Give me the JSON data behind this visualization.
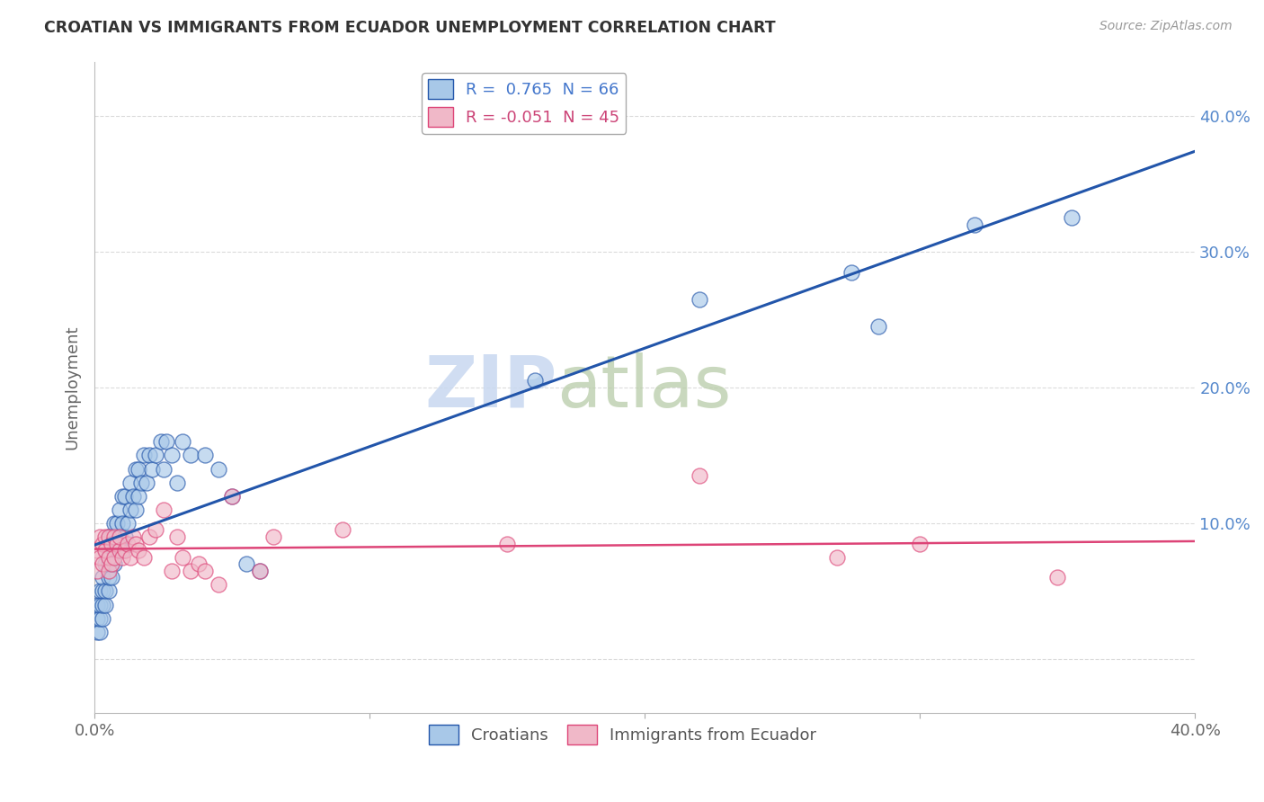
{
  "title": "CROATIAN VS IMMIGRANTS FROM ECUADOR UNEMPLOYMENT CORRELATION CHART",
  "source": "Source: ZipAtlas.com",
  "ylabel": "Unemployment",
  "croatian_r": 0.765,
  "croatian_n": 66,
  "ecuador_r": -0.051,
  "ecuador_n": 45,
  "blue_color": "#a8c8e8",
  "pink_color": "#f0b8c8",
  "blue_line_color": "#2255aa",
  "pink_line_color": "#dd4477",
  "watermark_zip_color": "#c8d8ee",
  "watermark_atlas_color": "#c8d8cc",
  "background_color": "#ffffff",
  "grid_color": "#cccccc",
  "croatian_x": [
    0.001,
    0.001,
    0.001,
    0.002,
    0.002,
    0.002,
    0.002,
    0.003,
    0.003,
    0.003,
    0.003,
    0.004,
    0.004,
    0.004,
    0.004,
    0.005,
    0.005,
    0.005,
    0.005,
    0.006,
    0.006,
    0.006,
    0.007,
    0.007,
    0.007,
    0.008,
    0.008,
    0.009,
    0.009,
    0.01,
    0.01,
    0.01,
    0.011,
    0.011,
    0.012,
    0.013,
    0.013,
    0.014,
    0.015,
    0.015,
    0.016,
    0.016,
    0.017,
    0.018,
    0.019,
    0.02,
    0.021,
    0.022,
    0.024,
    0.025,
    0.026,
    0.028,
    0.03,
    0.032,
    0.035,
    0.04,
    0.045,
    0.05,
    0.055,
    0.06,
    0.16,
    0.22,
    0.275,
    0.285,
    0.32,
    0.355
  ],
  "croatian_y": [
    0.02,
    0.03,
    0.04,
    0.02,
    0.03,
    0.04,
    0.05,
    0.03,
    0.04,
    0.05,
    0.06,
    0.04,
    0.05,
    0.07,
    0.08,
    0.05,
    0.06,
    0.07,
    0.09,
    0.06,
    0.07,
    0.09,
    0.07,
    0.08,
    0.1,
    0.08,
    0.1,
    0.09,
    0.11,
    0.08,
    0.1,
    0.12,
    0.09,
    0.12,
    0.1,
    0.11,
    0.13,
    0.12,
    0.11,
    0.14,
    0.12,
    0.14,
    0.13,
    0.15,
    0.13,
    0.15,
    0.14,
    0.15,
    0.16,
    0.14,
    0.16,
    0.15,
    0.13,
    0.16,
    0.15,
    0.15,
    0.14,
    0.12,
    0.07,
    0.065,
    0.205,
    0.265,
    0.285,
    0.245,
    0.32,
    0.325
  ],
  "ecuador_x": [
    0.001,
    0.001,
    0.002,
    0.002,
    0.003,
    0.003,
    0.004,
    0.004,
    0.005,
    0.005,
    0.005,
    0.006,
    0.006,
    0.007,
    0.007,
    0.008,
    0.009,
    0.009,
    0.01,
    0.011,
    0.012,
    0.013,
    0.014,
    0.015,
    0.016,
    0.018,
    0.02,
    0.022,
    0.025,
    0.028,
    0.03,
    0.032,
    0.035,
    0.038,
    0.04,
    0.045,
    0.05,
    0.06,
    0.065,
    0.09,
    0.15,
    0.22,
    0.27,
    0.3,
    0.35
  ],
  "ecuador_y": [
    0.065,
    0.08,
    0.075,
    0.09,
    0.07,
    0.085,
    0.08,
    0.09,
    0.065,
    0.075,
    0.09,
    0.07,
    0.085,
    0.075,
    0.09,
    0.085,
    0.08,
    0.09,
    0.075,
    0.08,
    0.085,
    0.075,
    0.09,
    0.085,
    0.08,
    0.075,
    0.09,
    0.095,
    0.11,
    0.065,
    0.09,
    0.075,
    0.065,
    0.07,
    0.065,
    0.055,
    0.12,
    0.065,
    0.09,
    0.095,
    0.085,
    0.135,
    0.075,
    0.085,
    0.06
  ],
  "xmin": 0.0,
  "xmax": 0.4,
  "ymin": -0.04,
  "ymax": 0.44,
  "yticks": [
    0.0,
    0.1,
    0.2,
    0.3,
    0.4
  ],
  "xticks": [
    0.0,
    0.1,
    0.2,
    0.3,
    0.4
  ]
}
